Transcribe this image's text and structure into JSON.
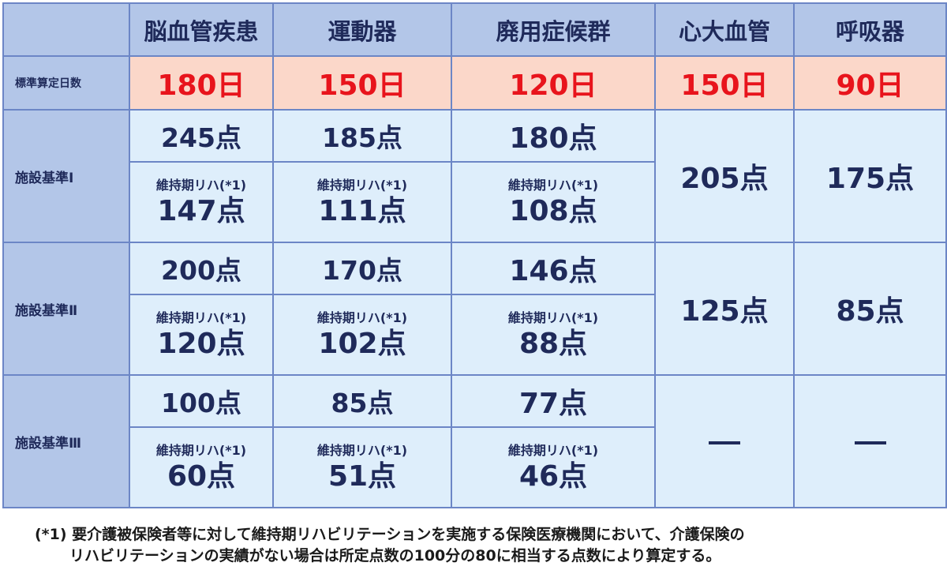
{
  "headers": [
    "",
    "脳血管疾患",
    "運動器",
    "廃用症候群",
    "心大血管",
    "呼吸器"
  ],
  "days_row": {
    "label": "標準算定日数",
    "values": [
      "180日",
      "150日",
      "120日",
      "150日",
      "90日"
    ]
  },
  "sub_label": "維持期リハ(*1)",
  "tiers": [
    {
      "label": "施設基準Ⅰ",
      "top": [
        "245点",
        "185点",
        "180点"
      ],
      "maintenance": [
        "147点",
        "111点",
        "108点"
      ],
      "cardiac": "205点",
      "respiratory": "175点"
    },
    {
      "label": "施設基準Ⅱ",
      "top": [
        "200点",
        "170点",
        "146点"
      ],
      "maintenance": [
        "120点",
        "102点",
        "88点"
      ],
      "cardiac": "125点",
      "respiratory": "85点"
    },
    {
      "label": "施設基準Ⅲ",
      "top": [
        "100点",
        "85点",
        "77点"
      ],
      "maintenance": [
        "60点",
        "51点",
        "46点"
      ],
      "cardiac": "—",
      "respiratory": "—"
    }
  ],
  "note": {
    "line1": "(*1) 要介護被保険者等に対して維持期リハビリテーションを実施する保険医療機関において、介護保険の",
    "line2": "リハビリテーションの実績がない場合は所定点数の100分の80に相当する点数により算定する。"
  }
}
